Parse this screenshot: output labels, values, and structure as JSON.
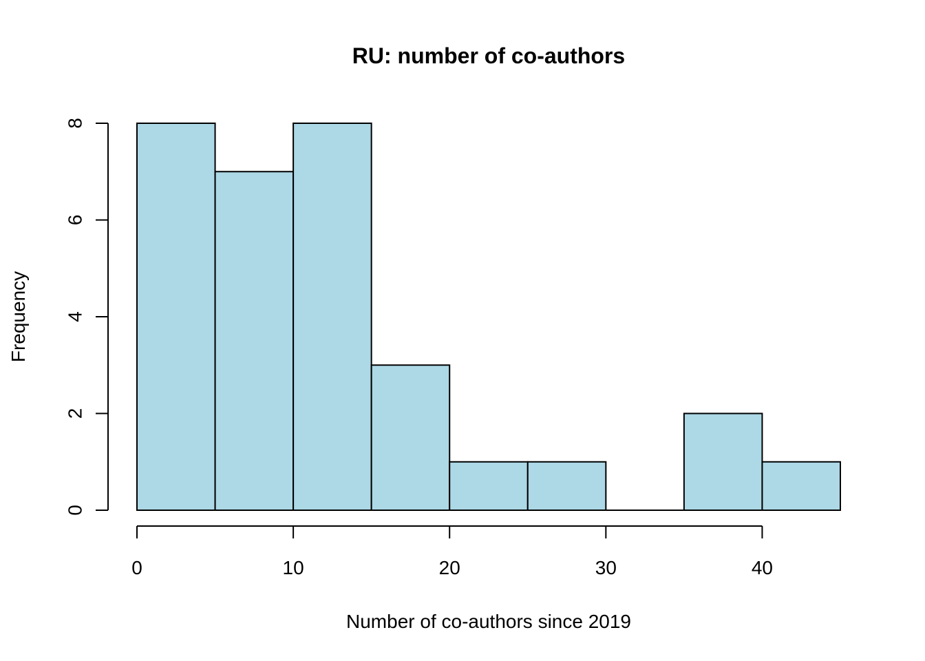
{
  "chart_data": {
    "type": "bar",
    "subtype": "histogram",
    "title": "RU: number of co-authors",
    "xlabel": "Number of co-authors since 2019",
    "ylabel": "Frequency",
    "bins": [
      {
        "from": 0,
        "to": 5,
        "count": 8
      },
      {
        "from": 5,
        "to": 10,
        "count": 7
      },
      {
        "from": 10,
        "to": 15,
        "count": 8
      },
      {
        "from": 15,
        "to": 20,
        "count": 3
      },
      {
        "from": 20,
        "to": 25,
        "count": 1
      },
      {
        "from": 25,
        "to": 30,
        "count": 1
      },
      {
        "from": 30,
        "to": 35,
        "count": 0
      },
      {
        "from": 35,
        "to": 40,
        "count": 2
      },
      {
        "from": 40,
        "to": 45,
        "count": 1
      }
    ],
    "xlim": [
      0,
      45
    ],
    "ylim": [
      0,
      8
    ],
    "xticks": [
      0,
      10,
      20,
      30,
      40
    ],
    "yticks": [
      0,
      2,
      4,
      6,
      8
    ],
    "bar_color": "#add8e6",
    "grid": false,
    "legend": "none"
  }
}
